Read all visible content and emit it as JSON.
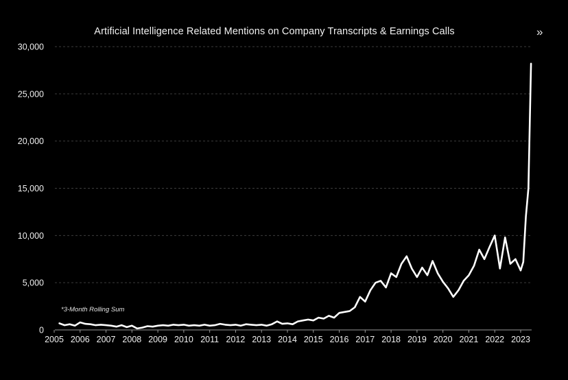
{
  "header": {
    "nav_icon": "double-chevron-right-icon",
    "nav_glyph": "»"
  },
  "chart_data": {
    "type": "line",
    "title": "Artificial Intelligence Related Mentions on Company Transcripts & Earnings Calls",
    "xlabel": "",
    "ylabel": "",
    "note": "*3-Month Rolling Sum",
    "xlim": [
      2005,
      2023.5
    ],
    "ylim": [
      0,
      30000
    ],
    "x_ticks": [
      2005,
      2006,
      2007,
      2008,
      2009,
      2010,
      2011,
      2012,
      2013,
      2014,
      2015,
      2016,
      2017,
      2018,
      2019,
      2020,
      2021,
      2022,
      2023
    ],
    "x_tick_labels": [
      "2005",
      "2006",
      "2007",
      "2008",
      "2009",
      "2010",
      "2011",
      "2012",
      "2013",
      "2014",
      "2015",
      "2016",
      "2017",
      "2018",
      "2019",
      "2020",
      "2021",
      "2022",
      "2023"
    ],
    "y_ticks": [
      0,
      5000,
      10000,
      15000,
      20000,
      25000,
      30000
    ],
    "y_tick_labels": [
      "0",
      "5,000",
      "10,000",
      "15,000",
      "20,000",
      "25,000",
      "30,000"
    ],
    "grid": "horizontal dashed",
    "line_color": "#ffffff",
    "background": "#000000",
    "series": [
      {
        "x": [
          2005.2,
          2005.4,
          2005.6,
          2005.8,
          2006.0,
          2006.2,
          2006.4,
          2006.6,
          2006.8,
          2007.0,
          2007.2,
          2007.4,
          2007.6,
          2007.8,
          2008.0,
          2008.2,
          2008.4,
          2008.6,
          2008.8,
          2009.0,
          2009.2,
          2009.4,
          2009.6,
          2009.8,
          2010.0,
          2010.2,
          2010.4,
          2010.6,
          2010.8,
          2011.0,
          2011.2,
          2011.4,
          2011.6,
          2011.8,
          2012.0,
          2012.2,
          2012.4,
          2012.6,
          2012.8,
          2013.0,
          2013.2,
          2013.4,
          2013.6,
          2013.8,
          2014.0,
          2014.2,
          2014.4,
          2014.6,
          2014.8,
          2015.0,
          2015.2,
          2015.4,
          2015.6,
          2015.8,
          2016.0,
          2016.2,
          2016.4,
          2016.6,
          2016.8,
          2017.0,
          2017.2,
          2017.4,
          2017.6,
          2017.8,
          2018.0,
          2018.2,
          2018.4,
          2018.6,
          2018.8,
          2019.0,
          2019.2,
          2019.4,
          2019.6,
          2019.8,
          2020.0,
          2020.2,
          2020.4,
          2020.6,
          2020.8,
          2021.0,
          2021.2,
          2021.4,
          2021.6,
          2021.8,
          2022.0,
          2022.2,
          2022.4,
          2022.6,
          2022.8,
          2023.0,
          2023.1,
          2023.2,
          2023.3,
          2023.4
        ],
        "y": [
          700,
          500,
          600,
          450,
          800,
          650,
          600,
          500,
          550,
          500,
          450,
          350,
          500,
          300,
          450,
          150,
          250,
          400,
          350,
          450,
          500,
          450,
          550,
          500,
          550,
          450,
          500,
          450,
          550,
          450,
          500,
          650,
          550,
          500,
          550,
          450,
          600,
          550,
          500,
          550,
          450,
          600,
          900,
          650,
          700,
          600,
          900,
          1000,
          1100,
          1000,
          1300,
          1200,
          1500,
          1300,
          1800,
          1900,
          2000,
          2400,
          3500,
          3000,
          4200,
          5000,
          5200,
          4500,
          6000,
          5600,
          7000,
          7800,
          6500,
          5600,
          6600,
          5800,
          7300,
          6000,
          5100,
          4400,
          3500,
          4200,
          5200,
          5800,
          6800,
          8500,
          7500,
          8800,
          10000,
          6500,
          9800,
          7000,
          7500,
          6300,
          7200,
          12000,
          15000,
          28200
        ]
      }
    ]
  }
}
